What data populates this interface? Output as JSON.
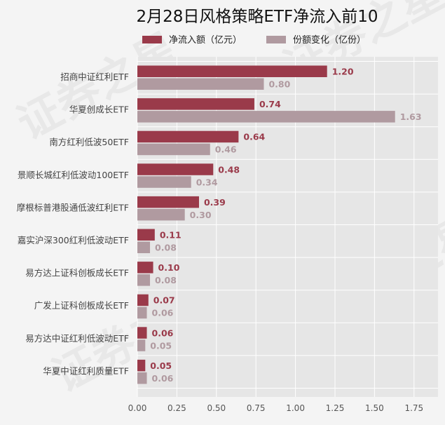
{
  "chart_data": {
    "type": "bar",
    "orientation": "horizontal",
    "title": "2月28日风格策略ETF净流入前10",
    "categories": [
      "招商中证红利ETF",
      "华夏创成长ETF",
      "南方红利低波50ETF",
      "景顺长城红利低波动100ETF",
      "摩根标普港股通低波红利ETF",
      "嘉实沪深300红利低波动ETF",
      "易方达上证科创板成长ETF",
      "广发上证科创板成长ETF",
      "易方达中证红利低波动ETF",
      "华夏中证红利质量ETF"
    ],
    "series": [
      {
        "name": "净流入额（亿元）",
        "color": "#9a3a4a",
        "values": [
          1.2,
          0.74,
          0.64,
          0.48,
          0.39,
          0.11,
          0.1,
          0.07,
          0.06,
          0.05
        ],
        "labels": [
          "1.20",
          "0.74",
          "0.64",
          "0.48",
          "0.39",
          "0.11",
          "0.10",
          "0.07",
          "0.06",
          "0.05"
        ]
      },
      {
        "name": "份额变化（亿份）",
        "color": "#b09aa0",
        "values": [
          0.8,
          1.63,
          0.46,
          0.34,
          0.3,
          0.08,
          0.08,
          0.06,
          0.05,
          0.06
        ],
        "labels": [
          "0.80",
          "1.63",
          "0.46",
          "0.34",
          "0.30",
          "0.08",
          "0.08",
          "0.06",
          "0.05",
          "0.06"
        ]
      }
    ],
    "xlim": [
      0,
      1.9
    ],
    "xticks": [
      0,
      0.25,
      0.5,
      0.75,
      1,
      1.25,
      1.5,
      1.75
    ],
    "xtick_labels": [
      "0.00",
      "0.25",
      "0.50",
      "0.75",
      "1.00",
      "1.25",
      "1.50",
      "1.75"
    ],
    "grid": true,
    "legend_position": "top",
    "plot_background": "#e6e6e6",
    "watermark": "证券之星"
  }
}
